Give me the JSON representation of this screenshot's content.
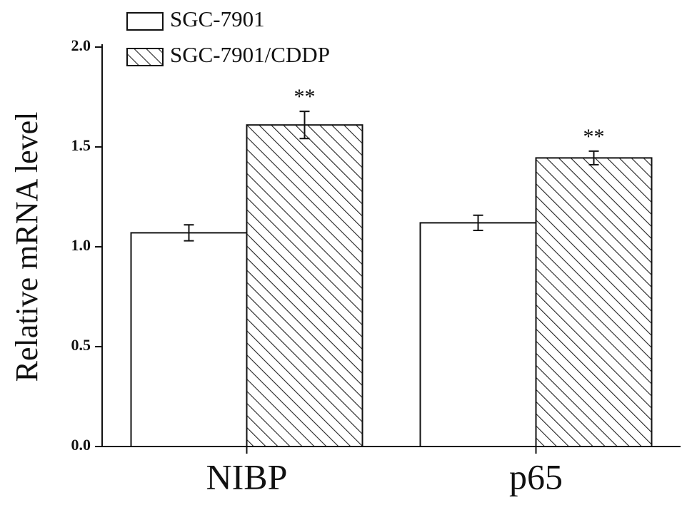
{
  "chart_data": {
    "type": "bar",
    "y_label": "Relative mRNA level",
    "categories": [
      "NIBP",
      "p65"
    ],
    "series": [
      {
        "name": "SGC-7901",
        "color": "#ffffff",
        "hatch": false,
        "values": [
          1.07,
          1.12
        ],
        "errors": [
          0.04,
          0.038
        ]
      },
      {
        "name": "SGC-7901/CDDP",
        "color": "#ffffff",
        "hatch": true,
        "values": [
          1.61,
          1.445
        ],
        "errors": [
          0.068,
          0.034
        ],
        "annotations": [
          "**",
          "**"
        ]
      }
    ],
    "ylim": [
      0,
      2.0
    ],
    "yticks": [
      {
        "value": 0,
        "label": "0.0"
      },
      {
        "value": 0.5,
        "label": "0.5"
      },
      {
        "value": 1.0,
        "label": "1.0"
      },
      {
        "value": 1.5,
        "label": "1.5"
      },
      {
        "value": 2.0,
        "label": "2.0"
      }
    ],
    "legend": "top-left"
  }
}
